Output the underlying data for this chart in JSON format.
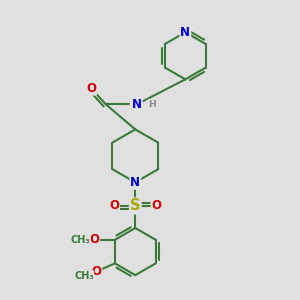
{
  "background_color": "#e0e0e0",
  "bond_color": "#3a7a3a",
  "bond_width": 1.5,
  "atom_colors": {
    "N": "#0000cc",
    "O": "#cc0000",
    "S": "#aaaa00",
    "C": "#3a7a3a",
    "H": "#888888"
  },
  "font_size": 8.5,
  "figsize": [
    3.0,
    3.0
  ],
  "dpi": 100,
  "xlim": [
    0,
    10
  ],
  "ylim": [
    0,
    10
  ]
}
